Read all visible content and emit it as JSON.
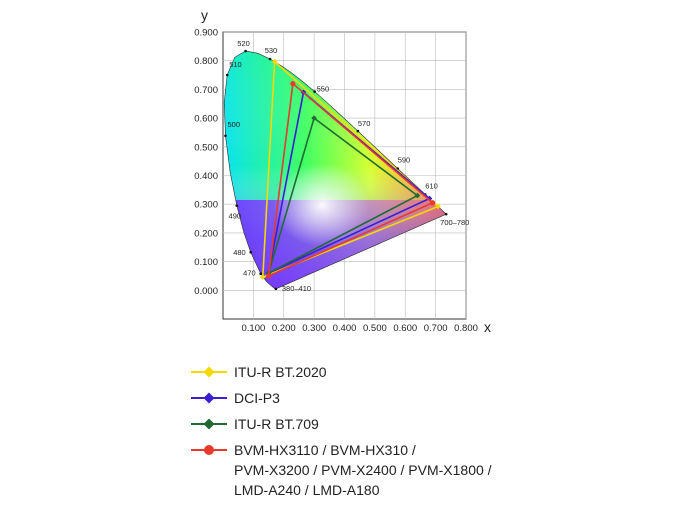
{
  "chart_data": {
    "type": "scatter",
    "title": "",
    "xlabel": "x",
    "ylabel": "y",
    "xlim": [
      0,
      0.8
    ],
    "ylim": [
      -0.1,
      0.9
    ],
    "x_ticks": [
      "0.100",
      "0.200",
      "0.300",
      "0.400",
      "0.500",
      "0.600",
      "0.700",
      "0.800"
    ],
    "y_ticks": [
      "0.900",
      "0.800",
      "0.700",
      "0.600",
      "0.500",
      "0.400",
      "0.300",
      "0.200",
      "0.100",
      "0.000"
    ],
    "grid": true,
    "locus": [
      [
        0.1741,
        0.005
      ],
      [
        0.1714,
        0.0051
      ],
      [
        0.1689,
        0.0069
      ],
      [
        0.1644,
        0.0109
      ],
      [
        0.1566,
        0.0177
      ],
      [
        0.144,
        0.0297
      ],
      [
        0.1241,
        0.0578
      ],
      [
        0.0913,
        0.1327
      ],
      [
        0.0687,
        0.2007
      ],
      [
        0.0454,
        0.295
      ],
      [
        0.0235,
        0.4127
      ],
      [
        0.0082,
        0.5384
      ],
      [
        0.0039,
        0.6548
      ],
      [
        0.0139,
        0.7502
      ],
      [
        0.0389,
        0.812
      ],
      [
        0.0743,
        0.8338
      ],
      [
        0.1142,
        0.8262
      ],
      [
        0.1547,
        0.8059
      ],
      [
        0.1929,
        0.7816
      ],
      [
        0.2296,
        0.7543
      ],
      [
        0.2658,
        0.7243
      ],
      [
        0.3016,
        0.6923
      ],
      [
        0.3373,
        0.6589
      ],
      [
        0.3731,
        0.6245
      ],
      [
        0.4087,
        0.5896
      ],
      [
        0.4441,
        0.5547
      ],
      [
        0.4788,
        0.5202
      ],
      [
        0.5125,
        0.4866
      ],
      [
        0.5448,
        0.4544
      ],
      [
        0.5752,
        0.4242
      ],
      [
        0.6029,
        0.3965
      ],
      [
        0.627,
        0.3725
      ],
      [
        0.6482,
        0.3514
      ],
      [
        0.6658,
        0.334
      ],
      [
        0.6801,
        0.3197
      ],
      [
        0.6915,
        0.3083
      ],
      [
        0.7006,
        0.2993
      ],
      [
        0.714,
        0.2859
      ],
      [
        0.7347,
        0.2653
      ]
    ],
    "wavelength_labels": [
      {
        "label": "380–410",
        "x": 0.1741,
        "y": 0.005
      },
      {
        "label": "470",
        "x": 0.1241,
        "y": 0.0578
      },
      {
        "label": "480",
        "x": 0.0913,
        "y": 0.1327
      },
      {
        "label": "490",
        "x": 0.0454,
        "y": 0.295
      },
      {
        "label": "500",
        "x": 0.0082,
        "y": 0.5384
      },
      {
        "label": "510",
        "x": 0.0139,
        "y": 0.7502
      },
      {
        "label": "520",
        "x": 0.0743,
        "y": 0.8338
      },
      {
        "label": "530",
        "x": 0.1547,
        "y": 0.8059
      },
      {
        "label": "550",
        "x": 0.3016,
        "y": 0.6923
      },
      {
        "label": "570",
        "x": 0.4441,
        "y": 0.5547
      },
      {
        "label": "590",
        "x": 0.5752,
        "y": 0.4242
      },
      {
        "label": "610",
        "x": 0.6658,
        "y": 0.334
      },
      {
        "label": "700–780",
        "x": 0.7347,
        "y": 0.2653
      }
    ],
    "series": [
      {
        "name": "ITU-R BT.2020",
        "color": "#f5d800",
        "points": [
          [
            0.708,
            0.292
          ],
          [
            0.17,
            0.797
          ],
          [
            0.131,
            0.046
          ]
        ]
      },
      {
        "name": "DCI-P3",
        "color": "#3a1fd1",
        "points": [
          [
            0.68,
            0.32
          ],
          [
            0.265,
            0.69
          ],
          [
            0.15,
            0.06
          ]
        ]
      },
      {
        "name": "ITU-R BT.709",
        "color": "#1f6b34",
        "points": [
          [
            0.64,
            0.33
          ],
          [
            0.3,
            0.6
          ],
          [
            0.15,
            0.06
          ]
        ]
      },
      {
        "name": "BVM-HX3110 / BVM-HX310 /\nPVM-X3200 / PVM-X2400 / PVM-X1800 /\nLMD-A240 / LMD-A180",
        "color": "#e8392d",
        "points": [
          [
            0.69,
            0.305
          ],
          [
            0.23,
            0.72
          ],
          [
            0.15,
            0.05
          ]
        ]
      }
    ]
  }
}
